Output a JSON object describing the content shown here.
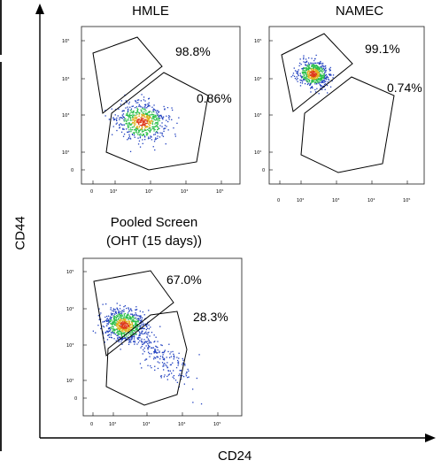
{
  "axes": {
    "y_label": "CD44",
    "x_label": "CD24"
  },
  "panels": [
    {
      "title": "HMLE",
      "upper_gate": "98.8%",
      "lower_gate": "0.86%",
      "x_ticks": [
        "0",
        "10²",
        "10³",
        "10⁴",
        "10⁵"
      ],
      "y_ticks": [
        "10⁵",
        "10⁴",
        "10³",
        "10²",
        "0"
      ]
    },
    {
      "title": "NAMEC",
      "upper_gate": "99.1%",
      "lower_gate": "0.74%",
      "x_ticks": [
        "0",
        "10²",
        "10³",
        "10⁴",
        "10⁵"
      ],
      "y_ticks": [
        "10⁵",
        "10⁴",
        "10³",
        "10²",
        "0"
      ]
    },
    {
      "title_line1": "Pooled Screen",
      "title_line2": "(OHT (15 days))",
      "upper_gate": "67.0%",
      "lower_gate": "28.3%",
      "x_ticks": [
        "0",
        "10²",
        "10³",
        "10⁴",
        "10⁵"
      ],
      "y_ticks": [
        "10⁵",
        "10⁴",
        "10³",
        "10²",
        "0"
      ]
    }
  ],
  "colors": {
    "density_low": "#1f3fbf",
    "density_mid": "#2bbf4a",
    "density_high": "#e0b020",
    "density_peak": "#e03a1a"
  }
}
